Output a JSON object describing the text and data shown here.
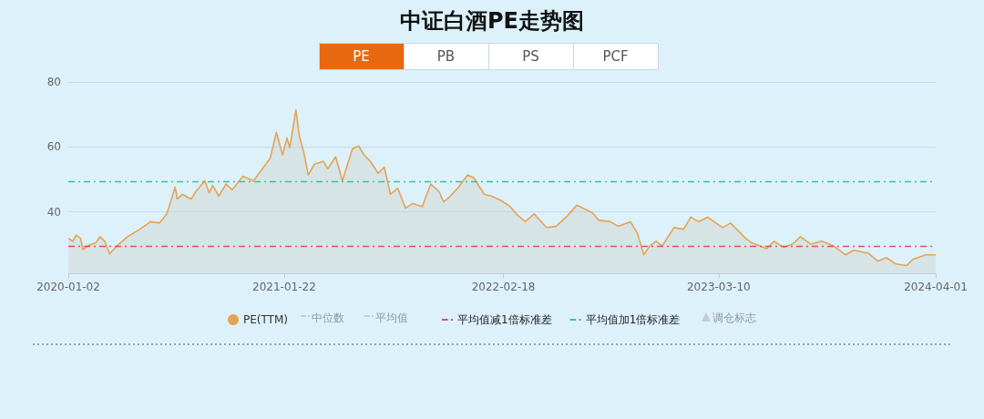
{
  "chart_data": {
    "type": "area",
    "title": "中证白酒PE走势图",
    "annotations": [
      "PE",
      "PB",
      "PS",
      "PCF",
      "中位数",
      "平均值",
      "调仓标志"
    ],
    "x": [
      "2020-01-02",
      "2020-01-10",
      "2020-01-16",
      "2020-01-24",
      "2020-01-28",
      "2020-02-06",
      "2020-02-20",
      "2020-02-28",
      "2020-03-07",
      "2020-03-16",
      "2020-03-29",
      "2020-04-17",
      "2020-05-09",
      "2020-05-28",
      "2020-06-13",
      "2020-06-26",
      "2020-07-02",
      "2020-07-11",
      "2020-07-15",
      "2020-07-24",
      "2020-08-09",
      "2020-08-17",
      "2020-09-02",
      "2020-09-10",
      "2020-09-16",
      "2020-09-27",
      "2020-10-10",
      "2020-10-21",
      "2020-11-09",
      "2020-11-28",
      "2020-12-12",
      "2020-12-28",
      "2021-01-08",
      "2021-01-19",
      "2021-01-27",
      "2021-02-01",
      "2021-02-12",
      "2021-02-18",
      "2021-02-26",
      "2021-03-06",
      "2021-03-17",
      "2021-04-02",
      "2021-04-10",
      "2021-04-24",
      "2021-05-06",
      "2021-05-24",
      "2021-06-04",
      "2021-06-14",
      "2021-06-25",
      "2021-07-09",
      "2021-07-20",
      "2021-07-31",
      "2021-08-13",
      "2021-08-27",
      "2021-09-09",
      "2021-09-26",
      "2021-10-11",
      "2021-10-26",
      "2021-11-03",
      "2021-11-13",
      "2021-11-30",
      "2021-12-16",
      "2021-12-27",
      "2022-01-15",
      "2022-01-28",
      "2022-02-14",
      "2022-03-02",
      "2022-03-13",
      "2022-03-29",
      "2022-04-14",
      "2022-05-06",
      "2022-05-23",
      "2022-06-13",
      "2022-06-29",
      "2022-07-27",
      "2022-08-07",
      "2022-08-28",
      "2022-09-11",
      "2022-10-03",
      "2022-10-16",
      "2022-10-27",
      "2022-11-07",
      "2022-11-18",
      "2022-11-29",
      "2022-12-20",
      "2023-01-06",
      "2023-01-19",
      "2023-02-02",
      "2023-02-18",
      "2023-03-17",
      "2023-03-31",
      "2023-04-19",
      "2023-04-27",
      "2023-05-08",
      "2023-06-04",
      "2023-06-17",
      "2023-07-04",
      "2023-07-20",
      "2023-08-03",
      "2023-08-22",
      "2023-09-10",
      "2023-10-01",
      "2023-10-23",
      "2023-11-06",
      "2023-12-03",
      "2023-12-19",
      "2024-01-04",
      "2024-01-21",
      "2024-02-09",
      "2024-02-20",
      "2024-03-14",
      "2024-04-01"
    ],
    "series": [
      {
        "name": "PE(TTM)",
        "color": "#e8a254",
        "values": [
          31.9,
          31.0,
          32.9,
          31.9,
          28.4,
          29.6,
          30.5,
          32.4,
          31.0,
          27.1,
          29.6,
          32.4,
          34.7,
          37.0,
          36.6,
          39.4,
          42.6,
          47.7,
          44.0,
          45.4,
          44.0,
          46.3,
          49.6,
          45.9,
          48.2,
          44.9,
          48.6,
          46.8,
          51.0,
          49.6,
          52.8,
          56.6,
          64.5,
          57.5,
          62.8,
          59.8,
          71.4,
          63.5,
          58.4,
          51.4,
          54.7,
          55.6,
          53.3,
          57.0,
          49.6,
          59.4,
          60.3,
          57.5,
          55.6,
          51.9,
          53.8,
          45.4,
          47.3,
          41.2,
          42.6,
          41.7,
          48.6,
          46.3,
          43.1,
          44.5,
          47.7,
          51.4,
          50.5,
          45.4,
          44.9,
          43.5,
          41.7,
          39.4,
          37.0,
          39.4,
          35.2,
          35.6,
          38.9,
          42.1,
          39.8,
          37.5,
          37.0,
          35.6,
          37.0,
          33.3,
          26.8,
          29.6,
          31.0,
          29.6,
          35.2,
          34.7,
          38.4,
          37.0,
          38.4,
          35.2,
          36.6,
          33.3,
          31.9,
          30.5,
          28.7,
          31.0,
          29.1,
          30.1,
          32.4,
          30.1,
          31.0,
          29.6,
          26.8,
          28.2,
          27.3,
          24.9,
          25.9,
          24.0,
          23.5,
          25.4,
          26.8,
          26.8
        ]
      }
    ],
    "xlim": [
      "2020-01-02",
      "2024-04-01"
    ],
    "xticks": [
      "2020-01-02",
      "2021-01-22",
      "2022-02-18",
      "2023-03-10",
      "2024-04-01"
    ],
    "ylim": [
      21,
      80
    ],
    "yticks": [
      40,
      60,
      80
    ],
    "ref_lines": [
      {
        "axis": "y",
        "value": 29.5,
        "label": "平均值减1倍标准差",
        "color": "#e0505a",
        "line_style": "dashed"
      },
      {
        "axis": "y",
        "value": 49.5,
        "label": "平均值加1倍标准差",
        "color": "#3cbfa2",
        "line_style": "dashed"
      }
    ],
    "grid": "y",
    "legend": "bottom",
    "marker": "none"
  }
}
